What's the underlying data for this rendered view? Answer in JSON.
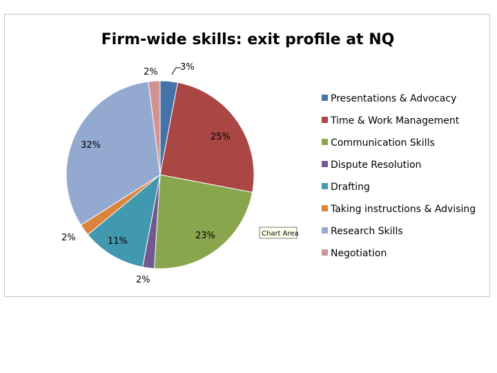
{
  "chart_data": {
    "type": "pie",
    "title": "Firm-wide skills: exit profile at NQ",
    "start_angle_deg": 0,
    "direction": "clockwise",
    "legend_position": "right",
    "slices": [
      {
        "name": "Presentations & Advocacy",
        "value": 3,
        "label": "3%",
        "color": "#4572a7"
      },
      {
        "name": "Time & Work Management",
        "value": 25,
        "label": "25%",
        "color": "#aa4643"
      },
      {
        "name": "Communication Skills",
        "value": 23,
        "label": "23%",
        "color": "#89a54e"
      },
      {
        "name": "Dispute Resolution",
        "value": 2,
        "label": "2%",
        "color": "#71588f"
      },
      {
        "name": "Drafting",
        "value": 11,
        "label": "11%",
        "color": "#4198af"
      },
      {
        "name": "Taking instructions & Advising",
        "value": 2,
        "label": "2%",
        "color": "#db843d"
      },
      {
        "name": "Research Skills",
        "value": 32,
        "label": "32%",
        "color": "#93a9cf"
      },
      {
        "name": "Negotiation",
        "value": 2,
        "label": "2%",
        "color": "#d19392"
      }
    ]
  },
  "tooltip": {
    "text": "Chart Area"
  }
}
